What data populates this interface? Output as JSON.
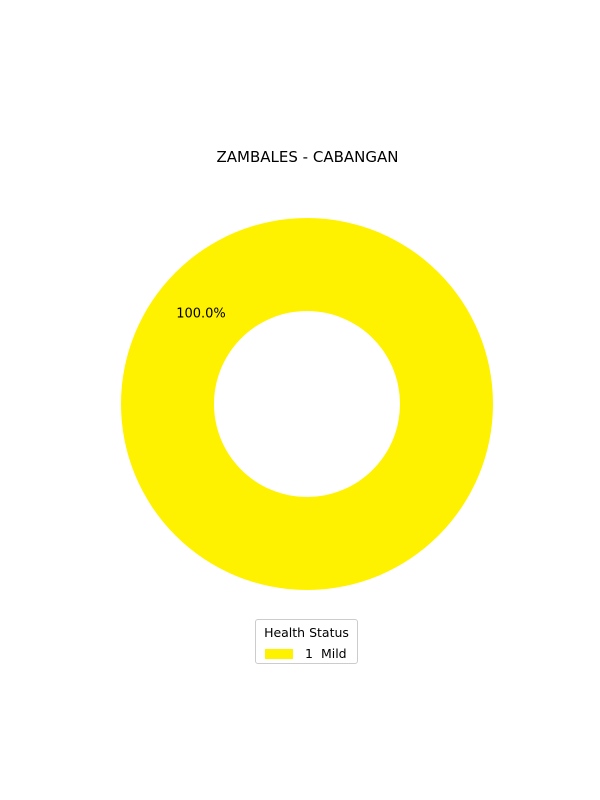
{
  "chart_data": {
    "type": "pie",
    "style": "donut",
    "title": "ZAMBALES - CABANGAN",
    "slices": [
      {
        "label": "Mild",
        "count": "1",
        "value": 1,
        "percent_label": "100.0%",
        "color": "#fff200"
      }
    ],
    "legend": {
      "title": "Health Status",
      "placement": "bottom-center"
    }
  }
}
